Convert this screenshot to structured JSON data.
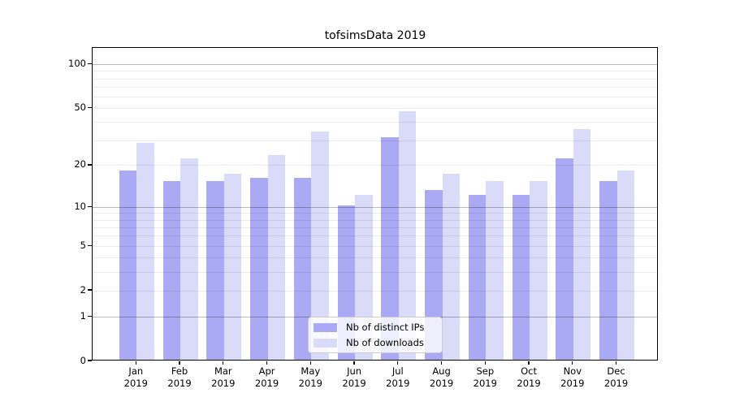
{
  "chart_data": {
    "type": "bar",
    "title": "tofsimsData 2019",
    "categories": [
      "Jan",
      "Feb",
      "Mar",
      "Apr",
      "May",
      "Jun",
      "Jul",
      "Aug",
      "Sep",
      "Oct",
      "Nov",
      "Dec"
    ],
    "category_year": "2019",
    "series": [
      {
        "name": "Nb of distinct IPs",
        "color": "#a9a9f4",
        "values": [
          18,
          15,
          15,
          16,
          16,
          10,
          31,
          13,
          12,
          12,
          22,
          15
        ]
      },
      {
        "name": "Nb of downloads",
        "color": "#dadaf9",
        "values": [
          28,
          22,
          17,
          23,
          34,
          12,
          47,
          17,
          15,
          15,
          35,
          18
        ]
      }
    ],
    "xlabel": "",
    "ylabel": "",
    "yscale": "symlog",
    "ylim": [
      0,
      130
    ],
    "y_ticks": [
      0,
      1,
      2,
      5,
      10,
      20,
      50,
      100
    ],
    "y_minor_ticks": [
      3,
      4,
      6,
      7,
      8,
      9,
      30,
      40,
      60,
      70,
      80,
      90
    ],
    "major_grid_ticks": [
      1,
      10,
      100
    ],
    "grid": "horizontal",
    "legend_position": "lower center"
  },
  "colors": {
    "grid_major": "rgba(0,0,0,0.27)",
    "grid_minor": "rgba(0,0,0,0.08)",
    "axis": "#000000",
    "legend_border": "#cccccc"
  }
}
